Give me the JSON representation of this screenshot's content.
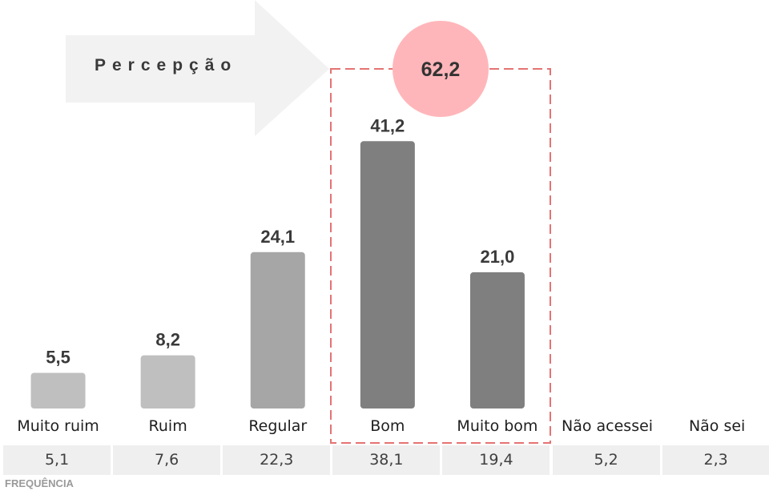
{
  "arrow_label": "Percepção",
  "highlight_total": "62,2",
  "frequency_title": "FREQUÊNCIA",
  "colors": {
    "light_bar": "#bfbfbf",
    "mid_bar": "#a6a6a6",
    "dark_bar": "#7f7f7f",
    "highlight": "#e57373",
    "circle": "#ffb6ba",
    "arrow": "#f2f2f2"
  },
  "chart_data": {
    "type": "bar",
    "categories": [
      "Muito ruim",
      "Ruim",
      "Regular",
      "Bom",
      "Muito bom",
      "Não acessei",
      "Não sei"
    ],
    "values": [
      5.5,
      8.2,
      24.1,
      41.2,
      21.0,
      null,
      null
    ],
    "value_labels": [
      "5,5",
      "8,2",
      "24,1",
      "41,2",
      "21,0",
      "",
      ""
    ],
    "frequency": [
      "5,1",
      "7,6",
      "22,3",
      "38,1",
      "19,4",
      "5,2",
      "2,3"
    ],
    "highlighted_categories": [
      "Bom",
      "Muito bom"
    ],
    "highlight_sum": 62.2
  }
}
